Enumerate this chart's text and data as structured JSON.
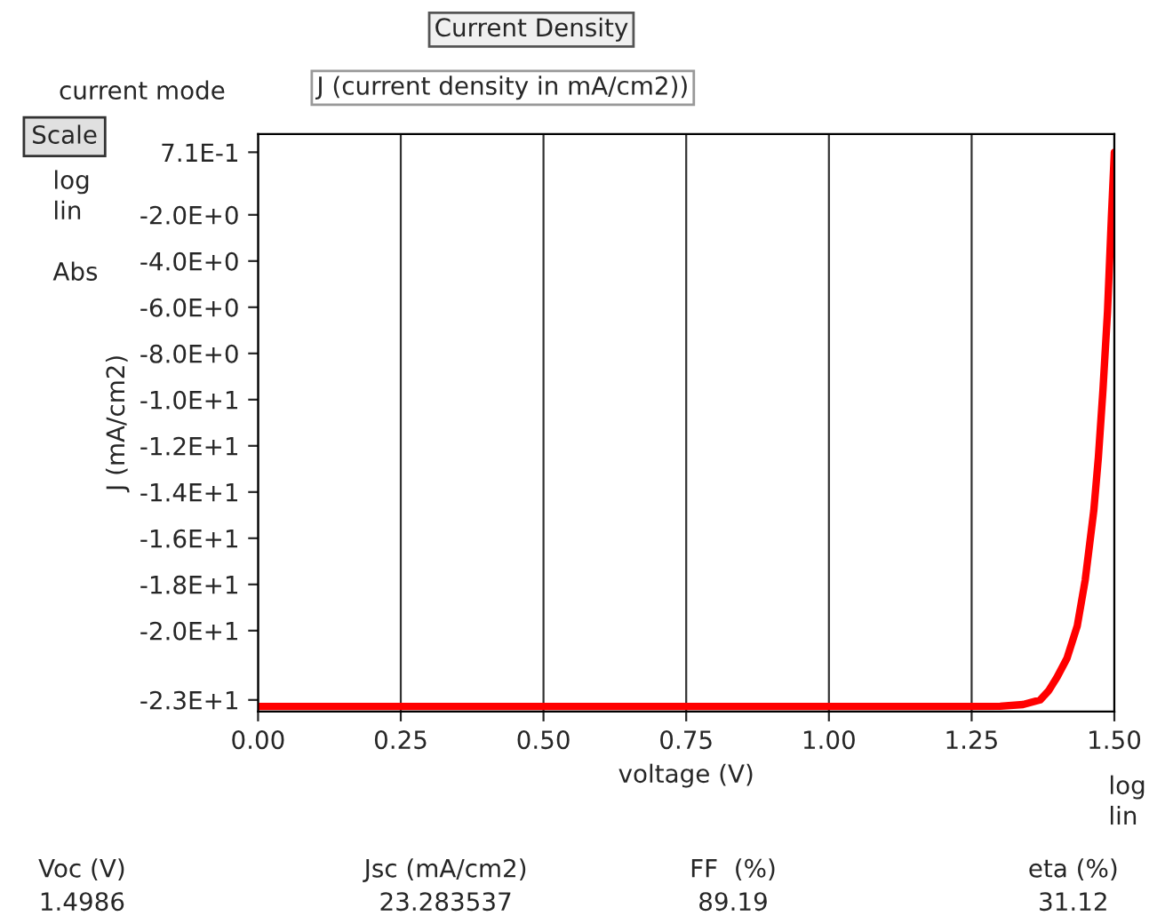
{
  "chart_data": {
    "type": "line",
    "title": "Current Density",
    "xlabel": "voltage (V)",
    "ylabel": "J (mA/cm2)",
    "series": [
      {
        "color": "#ff0000",
        "x": [
          0.0,
          0.25,
          0.5,
          0.75,
          1.0,
          1.2,
          1.3,
          1.34,
          1.37,
          1.385,
          1.4,
          1.417,
          1.435,
          1.449,
          1.464,
          1.472,
          1.48,
          1.488,
          1.495,
          1.5
        ],
        "values": [
          -23.28,
          -23.28,
          -23.28,
          -23.28,
          -23.28,
          -23.28,
          -23.27,
          -23.2,
          -23.0,
          -22.6,
          -22.0,
          -21.2,
          -19.8,
          -17.8,
          -14.8,
          -12.5,
          -9.6,
          -6.2,
          -2.0,
          0.71
        ]
      }
    ],
    "xlim": [
      0,
      1.5
    ],
    "xticks": [
      {
        "value": 0,
        "label": "0.00"
      },
      {
        "value": 0.25,
        "label": "0.25"
      },
      {
        "value": 0.5,
        "label": "0.50"
      },
      {
        "value": 0.75,
        "label": "0.75"
      },
      {
        "value": 1.0,
        "label": "1.00"
      },
      {
        "value": 1.25,
        "label": "1.25"
      },
      {
        "value": 1.5,
        "label": "1.50"
      }
    ],
    "ylim": [
      -23.5,
      1.5
    ],
    "yticks": [
      {
        "value": 0.71,
        "label": "7.1E-1"
      },
      {
        "value": -2,
        "label": "-2.0E+0"
      },
      {
        "value": -4,
        "label": "-4.0E+0"
      },
      {
        "value": -6,
        "label": "-6.0E+0"
      },
      {
        "value": -8,
        "label": "-8.0E+0"
      },
      {
        "value": -10,
        "label": "-1.0E+1"
      },
      {
        "value": -12,
        "label": "-1.2E+1"
      },
      {
        "value": -14,
        "label": "-1.4E+1"
      },
      {
        "value": -16,
        "label": "-1.6E+1"
      },
      {
        "value": -18,
        "label": "-1.8E+1"
      },
      {
        "value": -20,
        "label": "-2.0E+1"
      },
      {
        "value": -23,
        "label": "-2.3E+1"
      }
    ],
    "grid": "x",
    "marker": "none",
    "line_style": "solid",
    "annotations": [
      "current mode",
      "J (current density in mA/cm2))",
      "Scale",
      "log",
      "lin",
      "Abs",
      "log",
      "lin",
      "Voc (V)",
      "1.4986",
      "Jsc (mA/cm2)",
      "23.283537",
      "FF  (%)",
      "89.19",
      "eta (%)",
      "31.12"
    ]
  }
}
